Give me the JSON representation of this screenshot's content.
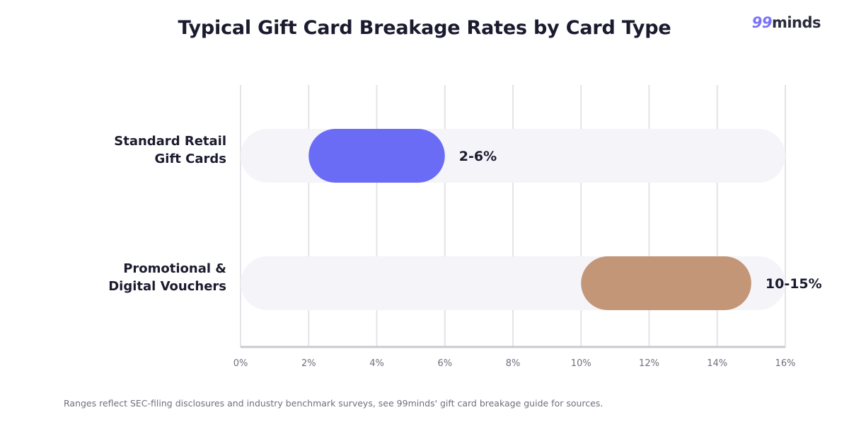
{
  "header": {
    "title": "Typical Gift Card Breakage Rates by Card Type",
    "logo_nums": "99",
    "logo_text": "minds"
  },
  "chart_data": {
    "type": "bar",
    "orientation": "horizontal",
    "style": "range",
    "title": "Typical Gift Card Breakage Rates by Card Type",
    "xlabel": "",
    "ylabel": "",
    "xlim": [
      0,
      16
    ],
    "x_ticks": [
      "0%",
      "2%",
      "4%",
      "6%",
      "8%",
      "10%",
      "12%",
      "14%",
      "16%"
    ],
    "grid": true,
    "categories": [
      {
        "lines": [
          "Standard Retail",
          "Gift Cards"
        ],
        "range": [
          2,
          6
        ],
        "value_label": "2-6%",
        "color": "#6b6cf6"
      },
      {
        "lines": [
          "Promotional &",
          "Digital Vouchers"
        ],
        "range": [
          10,
          15
        ],
        "value_label": "10-15%",
        "color": "#c29677"
      }
    ],
    "track_color": "#f5f4f9",
    "grid_color": "#e4e4e8",
    "axis_color": "#c9c9d1"
  },
  "footer": {
    "note": "Ranges reflect SEC-filing disclosures and industry benchmark surveys, see 99minds' gift card breakage guide for sources."
  }
}
